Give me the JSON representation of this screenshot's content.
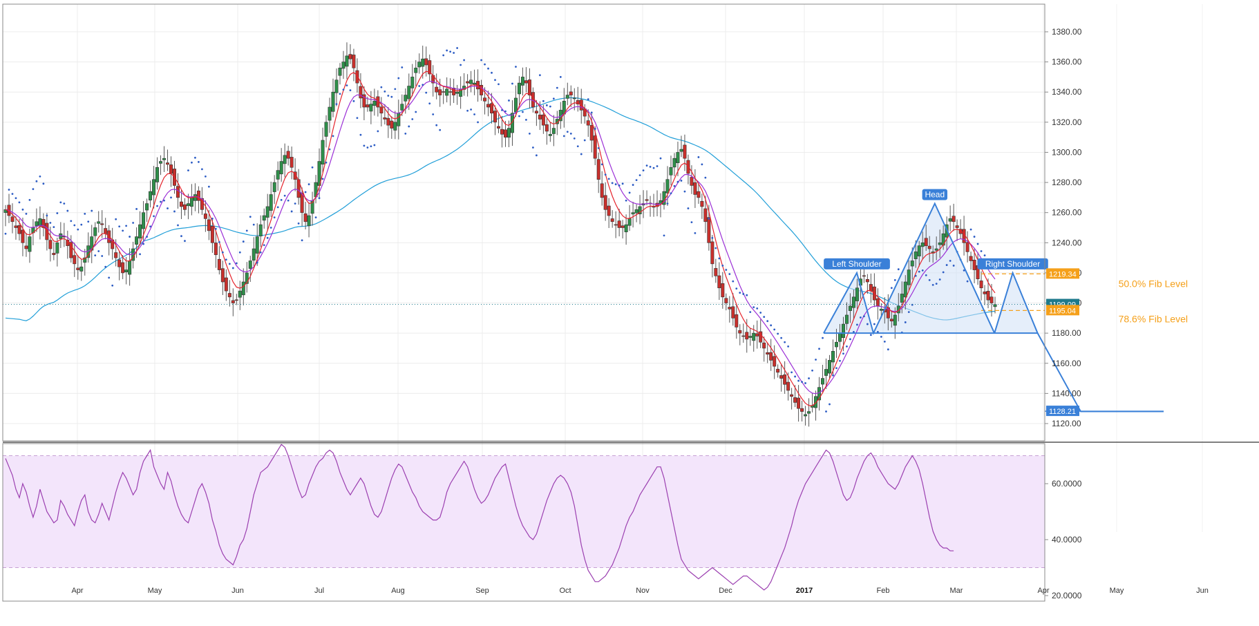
{
  "chart_data": {
    "type": "candlestick",
    "main_panel": {
      "y_ticks": [
        "1120.00",
        "1140.00",
        "1160.00",
        "1180.00",
        "1200.00",
        "1220.00",
        "1240.00",
        "1260.00",
        "1280.00",
        "1300.00",
        "1320.00",
        "1340.00",
        "1360.00",
        "1380.00"
      ],
      "ylim": [
        1112,
        1385
      ],
      "price_tags": [
        {
          "label": "1219.34",
          "value": 1219.34,
          "color": "#f5a01a"
        },
        {
          "label": "1199.09",
          "value": 1199.09,
          "color": "#1e7a8c"
        },
        {
          "label": "1195.04",
          "value": 1195.04,
          "color": "#f5a01a"
        },
        {
          "label": "1128.21",
          "value": 1128.21,
          "color": "#3a80d8"
        }
      ],
      "fib_levels": [
        {
          "label": "50.0% Fib Level",
          "value": 1219.34
        },
        {
          "label": "78.6% Fib Level",
          "value": 1195.04
        }
      ],
      "current_price": 1199.09,
      "target_price": 1128.21,
      "pattern": {
        "neckline": 1180,
        "labels": {
          "left_shoulder": "Left Shoulder",
          "head": "Head",
          "right_shoulder": "Right Shoulder"
        },
        "actual_path": [
          [
            0,
            1180
          ],
          [
            20,
            1220
          ],
          [
            30,
            1180
          ],
          [
            67,
            1266
          ],
          [
            103,
            1180
          ]
        ],
        "projected_path": [
          [
            103,
            1180
          ],
          [
            114,
            1220
          ],
          [
            129,
            1180
          ],
          [
            155,
            1128
          ],
          [
            205,
            1128
          ]
        ]
      },
      "close": [
        1262,
        1258,
        1254,
        1250,
        1246,
        1240,
        1236,
        1244,
        1250,
        1254,
        1256,
        1250,
        1242,
        1236,
        1232,
        1240,
        1246,
        1244,
        1238,
        1230,
        1226,
        1222,
        1224,
        1230,
        1238,
        1244,
        1250,
        1254,
        1252,
        1246,
        1240,
        1236,
        1230,
        1224,
        1220,
        1222,
        1228,
        1236,
        1244,
        1252,
        1260,
        1266,
        1274,
        1282,
        1290,
        1294,
        1296,
        1292,
        1286,
        1278,
        1270,
        1264,
        1262,
        1266,
        1270,
        1272,
        1268,
        1262,
        1256,
        1248,
        1240,
        1232,
        1222,
        1214,
        1208,
        1204,
        1200,
        1202,
        1208,
        1214,
        1220,
        1228,
        1236,
        1244,
        1252,
        1258,
        1264,
        1272,
        1280,
        1288,
        1294,
        1298,
        1296,
        1290,
        1282,
        1270,
        1260,
        1254,
        1258,
        1268,
        1280,
        1294,
        1308,
        1320,
        1330,
        1340,
        1348,
        1356,
        1360,
        1364,
        1362,
        1356,
        1346,
        1336,
        1330,
        1330,
        1332,
        1334,
        1330,
        1326,
        1322,
        1318,
        1316,
        1320,
        1326,
        1332,
        1338,
        1344,
        1350,
        1356,
        1360,
        1362,
        1358,
        1352,
        1346,
        1340,
        1338,
        1340,
        1342,
        1340,
        1338,
        1340,
        1342,
        1344,
        1346,
        1348,
        1346,
        1342,
        1338,
        1334,
        1330,
        1326,
        1320,
        1316,
        1312,
        1310,
        1316,
        1326,
        1336,
        1346,
        1350,
        1346,
        1338,
        1330,
        1326,
        1322,
        1318,
        1314,
        1312,
        1316,
        1322,
        1328,
        1334,
        1338,
        1338,
        1336,
        1332,
        1328,
        1324,
        1318,
        1308,
        1296,
        1282,
        1270,
        1262,
        1258,
        1254,
        1252,
        1250,
        1250,
        1252,
        1256,
        1260,
        1262,
        1264,
        1266,
        1268,
        1266,
        1264,
        1264,
        1268,
        1274,
        1282,
        1290,
        1296,
        1300,
        1302,
        1296,
        1286,
        1278,
        1272,
        1270,
        1264,
        1254,
        1240,
        1226,
        1218,
        1210,
        1204,
        1200,
        1196,
        1190,
        1184,
        1180,
        1178,
        1176,
        1178,
        1180,
        1178,
        1174,
        1170,
        1166,
        1162,
        1158,
        1154,
        1150,
        1146,
        1142,
        1138,
        1134,
        1130,
        1128,
        1126,
        1128,
        1132,
        1138,
        1144,
        1150,
        1156,
        1162,
        1168,
        1174,
        1180,
        1186,
        1192,
        1198,
        1204,
        1210,
        1216,
        1218,
        1214,
        1208,
        1202,
        1198,
        1196,
        1194,
        1190,
        1188,
        1192,
        1198,
        1206,
        1214,
        1222,
        1228,
        1234,
        1238,
        1240,
        1238,
        1236,
        1234,
        1236,
        1240,
        1246,
        1252,
        1256,
        1254,
        1250,
        1246,
        1240,
        1234,
        1228,
        1222,
        1216,
        1210,
        1206,
        1202,
        1200,
        1199
      ],
      "ema_fast_color": "#e5232b",
      "ema_mid_color": "#9b2fd6",
      "sma_slow_color": "#1f9ed8",
      "psar_color": "#2c5cc4"
    },
    "rsi_panel": {
      "y_ticks": [
        "20.0000",
        "40.0000",
        "60.0000"
      ],
      "ylim": [
        15,
        78
      ],
      "band": [
        30,
        70
      ],
      "values": [
        69,
        66,
        63,
        58,
        55,
        60,
        57,
        52,
        48,
        52,
        58,
        54,
        50,
        48,
        46,
        47,
        54,
        52,
        49,
        47,
        45,
        50,
        54,
        56,
        50,
        47,
        46,
        49,
        53,
        50,
        47,
        52,
        57,
        61,
        64,
        62,
        59,
        56,
        58,
        64,
        68,
        70,
        72,
        66,
        63,
        60,
        58,
        64,
        61,
        56,
        52,
        49,
        47,
        46,
        50,
        54,
        58,
        60,
        57,
        53,
        47,
        43,
        38,
        35,
        33,
        32,
        31,
        34,
        38,
        40,
        44,
        50,
        56,
        60,
        64,
        65,
        66,
        68,
        70,
        72,
        74,
        73,
        70,
        66,
        62,
        58,
        55,
        56,
        60,
        63,
        66,
        68,
        69,
        71,
        72,
        71,
        68,
        64,
        61,
        58,
        56,
        58,
        60,
        62,
        60,
        56,
        52,
        49,
        48,
        50,
        54,
        58,
        62,
        65,
        67,
        66,
        63,
        60,
        57,
        55,
        52,
        50,
        49,
        48,
        47,
        47,
        48,
        52,
        57,
        60,
        62,
        64,
        66,
        68,
        66,
        62,
        58,
        55,
        53,
        54,
        56,
        59,
        62,
        64,
        66,
        67,
        62,
        57,
        52,
        48,
        45,
        43,
        41,
        40,
        42,
        46,
        50,
        54,
        57,
        60,
        62,
        63,
        62,
        60,
        57,
        52,
        45,
        38,
        33,
        29,
        27,
        25,
        25,
        26,
        27,
        29,
        31,
        34,
        37,
        41,
        45,
        48,
        50,
        53,
        56,
        58,
        60,
        62,
        64,
        66,
        66,
        62,
        56,
        50,
        44,
        38,
        33,
        31,
        29,
        28,
        27,
        26,
        27,
        28,
        29,
        30,
        29,
        28,
        27,
        26,
        25,
        24,
        25,
        26,
        27,
        27,
        26,
        25,
        24,
        23,
        22,
        23,
        25,
        28,
        31,
        34,
        37,
        41,
        45,
        50,
        54,
        57,
        60,
        62,
        64,
        66,
        68,
        70,
        72,
        71,
        68,
        64,
        60,
        56,
        54,
        55,
        58,
        62,
        65,
        68,
        70,
        71,
        69,
        66,
        64,
        62,
        60,
        59,
        58,
        60,
        63,
        66,
        68,
        70,
        68,
        65,
        60,
        54,
        48,
        43,
        40,
        38,
        37,
        37,
        36,
        36
      ]
    },
    "x_ticks": [
      "Apr",
      "May",
      "Jun",
      "Jul",
      "Aug",
      "Sep",
      "Oct",
      "Nov",
      "Dec",
      "2017",
      "Feb",
      "Mar",
      "Apr",
      "May",
      "Jun"
    ]
  }
}
